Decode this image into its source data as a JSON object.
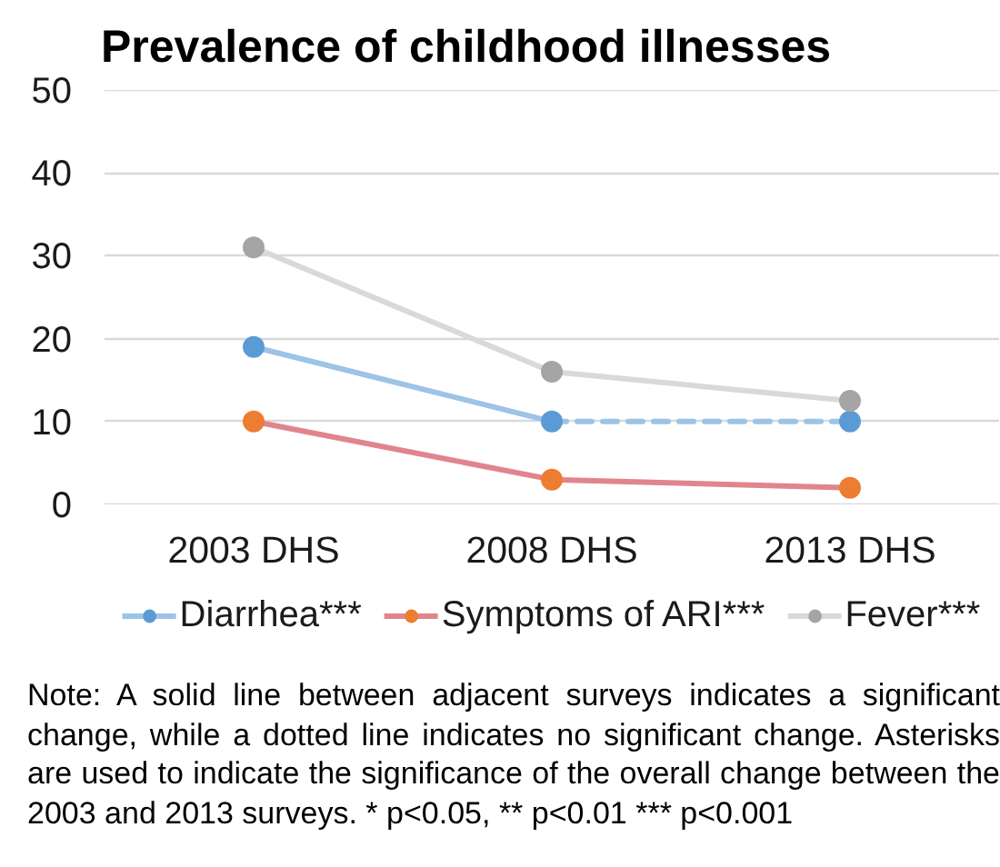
{
  "chart_data": {
    "type": "line",
    "title": "Prevalence of childhood illnesses",
    "categories": [
      "2003 DHS",
      "2008 DHS",
      "2013 DHS"
    ],
    "series": [
      {
        "name": "Diarrhea***",
        "color": "#9dc3e6",
        "colors": [
          "#5b9bd5",
          "#5b9bd5",
          "#5b9bd5"
        ],
        "values": [
          19,
          10,
          10
        ],
        "line_style": [
          "solid",
          "dashed"
        ]
      },
      {
        "name": "Symptoms of ARI***",
        "color": "#e0858c",
        "colors": [
          "#ed7d31",
          "#ed7d31",
          "#ed7d31"
        ],
        "values": [
          10,
          3,
          2
        ],
        "line_style": "solid"
      },
      {
        "name": "Fever***",
        "color": "#d9d9d9",
        "colors": [
          "#a5a5a5",
          "#a5a5a5",
          "#a5a5a5"
        ],
        "values": [
          31,
          16,
          12.5
        ],
        "line_style": "solid"
      }
    ],
    "ylim": [
      0,
      50
    ],
    "yticks": [
      0,
      10,
      20,
      30,
      40,
      50
    ],
    "grid": "y",
    "legend": "bottom",
    "marker": "circle",
    "annotations": [
      "Note: A solid line between adjacent surveys indicates a significant change, while a dotted line indicates no significant change. Asterisks are used to indicate the significance of the overall change between the 2003 and 2013 surveys. * p<0.05, ** p<0.01 *** p<0.001"
    ]
  }
}
